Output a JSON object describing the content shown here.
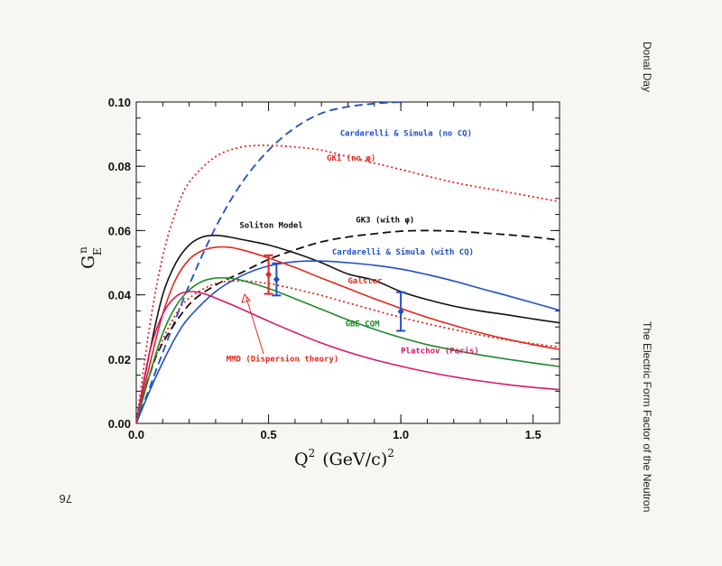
{
  "page": {
    "author": "Donal Day",
    "running_title": "The Electric Form Factor of the Neutron",
    "page_number": "76"
  },
  "chart_data": {
    "type": "line",
    "xlabel": "Q² (GeV/c)²",
    "ylabel": "G_E^n",
    "xlim": [
      0,
      1.6
    ],
    "ylim": [
      0,
      0.1
    ],
    "x_ticks": [
      "0.0",
      "0.5",
      "1.0",
      "1.5"
    ],
    "y_ticks": [
      "0.00",
      "0.02",
      "0.04",
      "0.06",
      "0.08",
      "0.10"
    ],
    "colors": {
      "blue": "#1f4fc8",
      "red": "#e0281e",
      "black": "#111111",
      "green": "#1f8a2a",
      "magenta": "#d8186a"
    },
    "series": [
      {
        "name": "Cardarelli & Simula (no CQ)",
        "color": "blue",
        "dash": "dashed",
        "x": [
          0,
          0.05,
          0.1,
          0.2,
          0.3,
          0.4,
          0.5,
          0.6,
          0.7,
          0.8,
          0.9,
          1.0
        ],
        "y": [
          0,
          0.011,
          0.022,
          0.043,
          0.061,
          0.075,
          0.085,
          0.092,
          0.0965,
          0.0985,
          0.0995,
          0.1
        ]
      },
      {
        "name": "GK1 (no φ)",
        "color": "red",
        "dash": "dotted",
        "x": [
          0,
          0.05,
          0.1,
          0.15,
          0.2,
          0.3,
          0.4,
          0.5,
          0.6,
          0.7,
          0.8,
          0.9,
          1.0,
          1.2,
          1.4,
          1.6
        ],
        "y": [
          0,
          0.03,
          0.052,
          0.066,
          0.075,
          0.083,
          0.086,
          0.0865,
          0.086,
          0.085,
          0.083,
          0.081,
          0.079,
          0.075,
          0.072,
          0.069
        ]
      },
      {
        "name": "GK3 (with φ)",
        "color": "black",
        "dash": "dashed",
        "x": [
          0,
          0.05,
          0.1,
          0.2,
          0.3,
          0.4,
          0.5,
          0.6,
          0.7,
          0.8,
          0.9,
          1.0,
          1.1,
          1.2,
          1.3,
          1.4,
          1.5,
          1.6
        ],
        "y": [
          0,
          0.015,
          0.025,
          0.037,
          0.043,
          0.047,
          0.051,
          0.054,
          0.0565,
          0.058,
          0.059,
          0.0598,
          0.06,
          0.0598,
          0.0593,
          0.0587,
          0.058,
          0.057
        ]
      },
      {
        "name": "Soliton Model",
        "color": "black",
        "dash": "solid",
        "x": [
          0,
          0.05,
          0.1,
          0.15,
          0.2,
          0.25,
          0.3,
          0.35,
          0.4,
          0.5,
          0.6,
          0.7,
          0.8,
          0.9,
          1.0,
          1.1,
          1.2,
          1.3,
          1.4,
          1.5,
          1.6
        ],
        "y": [
          0,
          0.022,
          0.04,
          0.05,
          0.0555,
          0.058,
          0.0585,
          0.058,
          0.0572,
          0.0555,
          0.053,
          0.05,
          0.0465,
          0.0445,
          0.041,
          0.0385,
          0.0365,
          0.035,
          0.0338,
          0.0325,
          0.0313
        ]
      },
      {
        "name": "Cardarelli & Simula (with CQ)",
        "color": "blue",
        "dash": "solid",
        "x": [
          0,
          0.05,
          0.1,
          0.15,
          0.2,
          0.3,
          0.4,
          0.5,
          0.6,
          0.7,
          0.8,
          0.9,
          1.0,
          1.1,
          1.2,
          1.3,
          1.4,
          1.5,
          1.6
        ],
        "y": [
          0,
          0.01,
          0.019,
          0.027,
          0.033,
          0.041,
          0.046,
          0.049,
          0.0503,
          0.0505,
          0.05,
          0.0492,
          0.048,
          0.0463,
          0.0443,
          0.042,
          0.0398,
          0.0375,
          0.0352
        ]
      },
      {
        "name": "Galster",
        "color": "red",
        "dash": "solid",
        "x": [
          0,
          0.05,
          0.1,
          0.15,
          0.2,
          0.25,
          0.3,
          0.35,
          0.4,
          0.5,
          0.6,
          0.7,
          0.8,
          0.9,
          1.0,
          1.1,
          1.2,
          1.3,
          1.4,
          1.5,
          1.6
        ],
        "y": [
          0,
          0.018,
          0.034,
          0.045,
          0.051,
          0.0538,
          0.0548,
          0.0548,
          0.054,
          0.0515,
          0.0485,
          0.0452,
          0.042,
          0.0388,
          0.0358,
          0.033,
          0.0305,
          0.0282,
          0.0262,
          0.0245,
          0.023
        ]
      },
      {
        "name": "MMD (Dispersion theory)",
        "color": "red",
        "dash": "dotted",
        "x": [
          0,
          0.05,
          0.1,
          0.15,
          0.2,
          0.3,
          0.4,
          0.5,
          0.6,
          0.7,
          0.8,
          0.9,
          1.0,
          1.1,
          1.2,
          1.3,
          1.4,
          1.5,
          1.6
        ],
        "y": [
          0,
          0.015,
          0.026,
          0.034,
          0.039,
          0.0435,
          0.0443,
          0.0435,
          0.0418,
          0.0398,
          0.0375,
          0.0352,
          0.033,
          0.031,
          0.0292,
          0.0275,
          0.026,
          0.0248,
          0.0237
        ]
      },
      {
        "name": "GBE CQM",
        "color": "green",
        "dash": "solid",
        "x": [
          0,
          0.05,
          0.1,
          0.15,
          0.2,
          0.25,
          0.3,
          0.35,
          0.4,
          0.5,
          0.6,
          0.7,
          0.8,
          0.9,
          1.0,
          1.1,
          1.2,
          1.3,
          1.4,
          1.5,
          1.6
        ],
        "y": [
          0,
          0.015,
          0.028,
          0.0365,
          0.0415,
          0.0442,
          0.0452,
          0.0452,
          0.0445,
          0.042,
          0.0388,
          0.0355,
          0.0322,
          0.0293,
          0.0267,
          0.0245,
          0.0228,
          0.0213,
          0.02,
          0.0188,
          0.0177
        ]
      },
      {
        "name": "Platchov (Paris)",
        "color": "magenta",
        "dash": "solid",
        "x": [
          0,
          0.05,
          0.1,
          0.15,
          0.2,
          0.25,
          0.3,
          0.4,
          0.5,
          0.6,
          0.7,
          0.8,
          0.9,
          1.0,
          1.1,
          1.2,
          1.3,
          1.4,
          1.5,
          1.6
        ],
        "y": [
          0,
          0.022,
          0.034,
          0.0395,
          0.041,
          0.0405,
          0.039,
          0.0355,
          0.0318,
          0.0283,
          0.025,
          0.0222,
          0.0198,
          0.0178,
          0.016,
          0.0145,
          0.0132,
          0.0121,
          0.0112,
          0.0105
        ]
      }
    ],
    "points": [
      {
        "x": 0.5,
        "y": 0.0463,
        "err": 0.006,
        "color": "red"
      },
      {
        "x": 0.53,
        "y": 0.0448,
        "err": 0.005,
        "color": "blue"
      },
      {
        "x": 1.0,
        "y": 0.0348,
        "err": 0.006,
        "color": "blue"
      }
    ],
    "annotations": [
      {
        "text": "Cardarelli & Simula (no CQ)",
        "x": 0.77,
        "y": 0.0895,
        "color": "blue"
      },
      {
        "text": "GK1 (no φ)",
        "x": 0.72,
        "y": 0.0817,
        "color": "red"
      },
      {
        "text": "GK3 (with φ)",
        "x": 0.83,
        "y": 0.0625,
        "color": "black"
      },
      {
        "text": "Soliton Model",
        "x": 0.39,
        "y": 0.0608,
        "color": "black"
      },
      {
        "text": "Cardarelli & Simula (with CQ)",
        "x": 0.74,
        "y": 0.0525,
        "color": "blue"
      },
      {
        "text": "Galster",
        "x": 0.8,
        "y": 0.0435,
        "color": "red"
      },
      {
        "text": "GBE CQM",
        "x": 0.79,
        "y": 0.0302,
        "color": "green"
      },
      {
        "text": "Platchov (Paris)",
        "x": 1.0,
        "y": 0.0217,
        "color": "magenta"
      },
      {
        "text": "MMD (Dispersion theory)",
        "x": 0.34,
        "y": 0.0193,
        "color": "red"
      }
    ]
  }
}
